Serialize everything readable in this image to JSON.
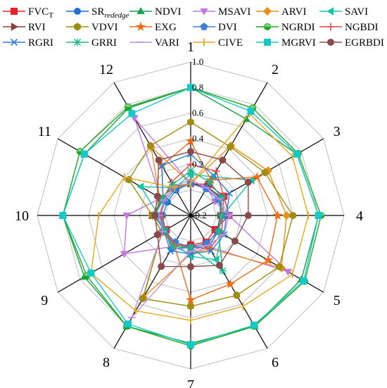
{
  "chart_data": {
    "type": "radar",
    "categories": [
      "1",
      "2",
      "3",
      "4",
      "5",
      "6",
      "7",
      "8",
      "9",
      "10",
      "11",
      "12"
    ],
    "r_ticks": [
      "-0.2",
      "0.2",
      "0.4",
      "0.6",
      "0.8",
      "1.0"
    ],
    "r_tick_values": [
      -0.2,
      0.2,
      0.4,
      0.6,
      0.8,
      1.0
    ],
    "rlim": [
      -0.2,
      1.0
    ],
    "grid": true,
    "legend_position": "top",
    "series": [
      {
        "name": "FVC",
        "name_sub": "T",
        "color": "#e8202a",
        "marker": "square",
        "values": [
          0.05,
          0.08,
          0.1,
          0.1,
          0.02,
          0.04,
          0.03,
          0.07,
          0.02,
          0.1,
          0.05,
          0.05
        ]
      },
      {
        "name": "SR",
        "name_sub": "rededge",
        "color": "#1f6fd0",
        "marker": "circle",
        "values": [
          0.05,
          0.06,
          0.08,
          0.04,
          0.05,
          0.08,
          0.05,
          0.1,
          0.03,
          0.02,
          0.01,
          0.03
        ]
      },
      {
        "name": "NDVI",
        "name_sub": "",
        "color": "#19a04a",
        "marker": "triangle-up",
        "values": [
          0.8,
          0.67,
          0.76,
          0.8,
          0.8,
          0.8,
          0.8,
          0.8,
          0.76,
          0.8,
          0.76,
          0.77
        ]
      },
      {
        "name": "MSAVI",
        "name_sub": "",
        "color": "#c378e0",
        "marker": "triangle-down",
        "values": [
          0.05,
          0.05,
          0.02,
          0.1,
          0.68,
          0.08,
          0.1,
          0.08,
          0.4,
          0.3,
          0.07,
          0.68
        ]
      },
      {
        "name": "ARVI",
        "name_sub": "",
        "color": "#e8901a",
        "marker": "diamond",
        "values": [
          0.05,
          0.43,
          0.5,
          0.55,
          0.62,
          0.1,
          0.1,
          0.54,
          0.06,
          0.1,
          0.08,
          0.42
        ]
      },
      {
        "name": "SAVI",
        "name_sub": "",
        "color": "#16c4a8",
        "marker": "triangle-left",
        "values": [
          0.12,
          0.15,
          0.35,
          0.05,
          0.08,
          0.2,
          0.12,
          0.05,
          0.05,
          0.05,
          0.25,
          0.05
        ]
      },
      {
        "name": "RVI",
        "name_sub": "",
        "color": "#8a3b3b",
        "marker": "triangle-right",
        "values": [
          0.05,
          0.06,
          0.07,
          0.03,
          0.04,
          0.06,
          0.04,
          0.06,
          0.04,
          0.08,
          0.07,
          0.06
        ]
      },
      {
        "name": "VDVI",
        "name_sub": "",
        "color": "#a08c10",
        "marker": "hexagon",
        "values": [
          0.53,
          0.42,
          0.47,
          0.6,
          0.6,
          0.52,
          0.51,
          0.55,
          0.06,
          0.1,
          0.36,
          0.43
        ]
      },
      {
        "name": "EXG",
        "name_sub": "",
        "color": "#f06a16",
        "marker": "star",
        "values": [
          0.38,
          0.12,
          0.4,
          0.48,
          0.5,
          0.42,
          0.46,
          0.06,
          0.06,
          0.03,
          0.05,
          0.25
        ]
      },
      {
        "name": "DVI",
        "name_sub": "",
        "color": "#3a82d8",
        "marker": "pentagon",
        "values": [
          0.05,
          0.04,
          0.05,
          0.05,
          0.05,
          0.05,
          0.05,
          0.04,
          0.04,
          0.04,
          0.03,
          0.04
        ]
      },
      {
        "name": "NGRDI",
        "name_sub": "",
        "color": "#1fa81f",
        "marker": "circle-half",
        "values": [
          0.8,
          0.77,
          0.77,
          0.82,
          0.83,
          0.8,
          0.82,
          0.8,
          0.74,
          0.8,
          0.8,
          0.78
        ]
      },
      {
        "name": "NGBDI",
        "name_sub": "",
        "color": "#e84848",
        "marker": "plus",
        "values": [
          0.2,
          0.2,
          0.1,
          0.05,
          0.08,
          0.1,
          0.05,
          0.06,
          0.03,
          0.03,
          0.05,
          0.1
        ]
      },
      {
        "name": "RGRI",
        "name_sub": "",
        "color": "#2a7fd8",
        "marker": "x",
        "values": [
          0.28,
          0.16,
          0.15,
          0.08,
          0.1,
          0.12,
          0.1,
          0.12,
          0.04,
          0.08,
          0.05,
          0.25
        ]
      },
      {
        "name": "GRRI",
        "name_sub": "",
        "color": "#22b58a",
        "marker": "asterisk",
        "values": [
          0.15,
          0.1,
          0.08,
          0.04,
          0.05,
          0.3,
          0.05,
          0.08,
          0.03,
          0.08,
          0.06,
          0.08
        ]
      },
      {
        "name": "VARI",
        "name_sub": "",
        "color": "#c090e0",
        "marker": "dash",
        "values": [
          0.08,
          0.05,
          0.06,
          0.1,
          0.1,
          0.07,
          0.08,
          0.72,
          0.05,
          0.05,
          0.04,
          0.06
        ]
      },
      {
        "name": "CIVE",
        "name_sub": "",
        "color": "#e8a81c",
        "marker": "vline",
        "values": [
          0.05,
          0.72,
          0.72,
          0.72,
          0.72,
          0.62,
          0.62,
          0.66,
          0.7,
          0.52,
          0.4,
          0.05
        ]
      },
      {
        "name": "MGRVI",
        "name_sub": "",
        "color": "#16c8c8",
        "marker": "square",
        "values": [
          0.8,
          0.74,
          0.76,
          0.8,
          0.82,
          0.79,
          0.81,
          0.78,
          0.7,
          0.8,
          0.76,
          0.72
        ]
      },
      {
        "name": "EGRBDI",
        "name_sub": "",
        "color": "#8a4a4a",
        "marker": "circle",
        "values": [
          0.3,
          0.3,
          0.32,
          0.25,
          0.2,
          0.25,
          0.2,
          0.26,
          0.1,
          0.08,
          0.1,
          0.3
        ]
      }
    ]
  }
}
